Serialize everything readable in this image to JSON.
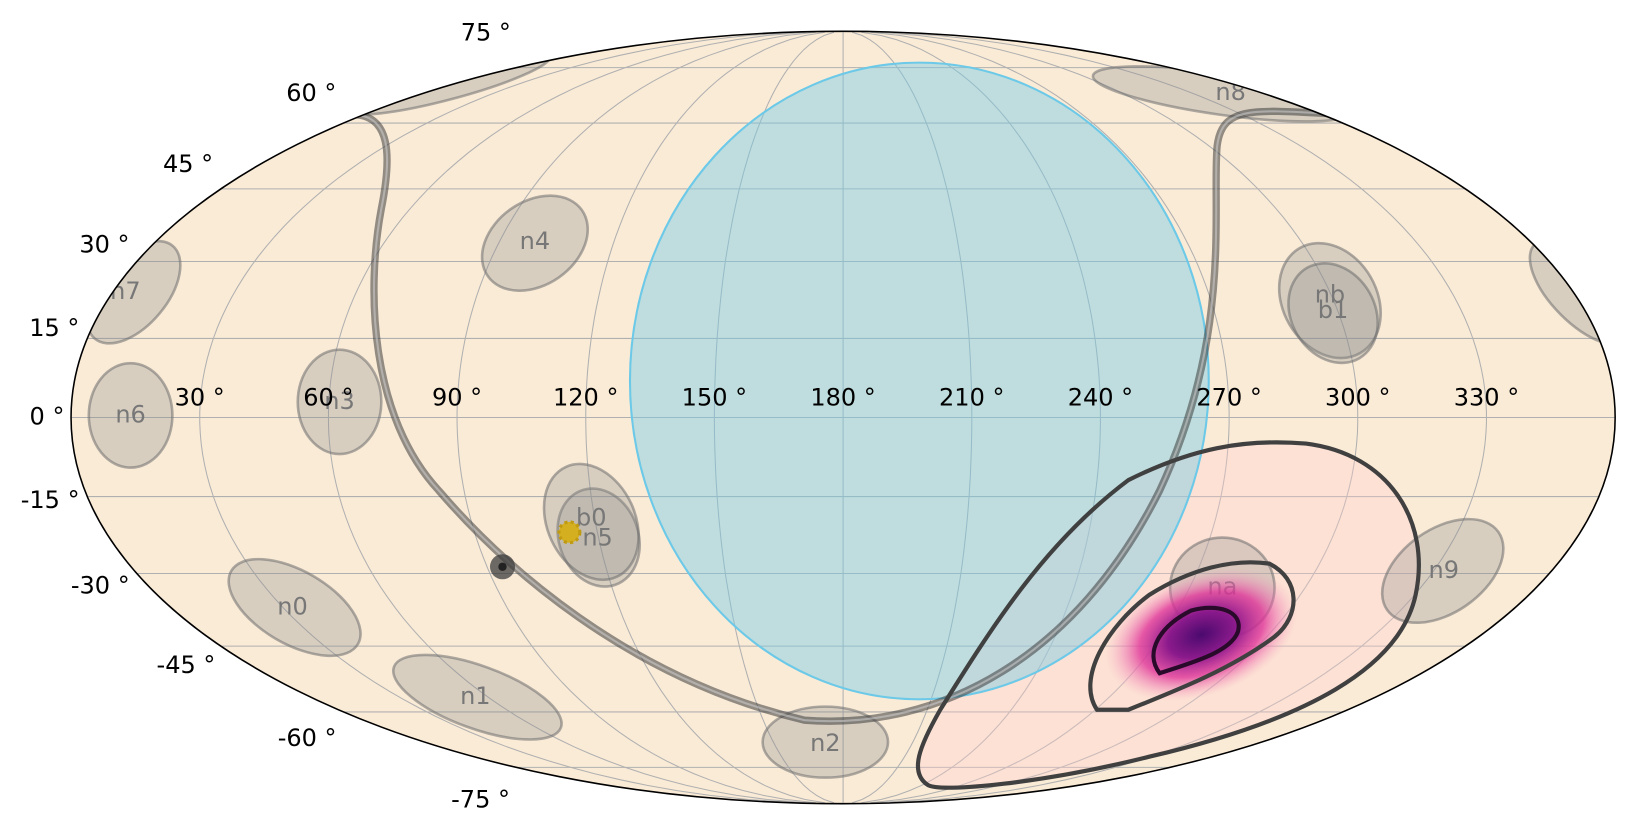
{
  "longitude_labels": [
    "330 °",
    "300 °",
    "270 °",
    "240 °",
    "210 °",
    "180 °",
    "150 °",
    "120 °",
    "90 °",
    "60 °",
    "30 °"
  ],
  "latitude_labels": [
    "75 °",
    "60 °",
    "45 °",
    "30 °",
    "15 °",
    "0 °",
    "-15 °",
    "-30 °",
    "-45 °",
    "-60 °",
    "-75 °"
  ],
  "detectors": [
    "n0",
    "n1",
    "n2",
    "n3",
    "n4",
    "n5",
    "n6",
    "n7",
    "n8",
    "n9",
    "na",
    "nb",
    "b0",
    "b1"
  ]
}
